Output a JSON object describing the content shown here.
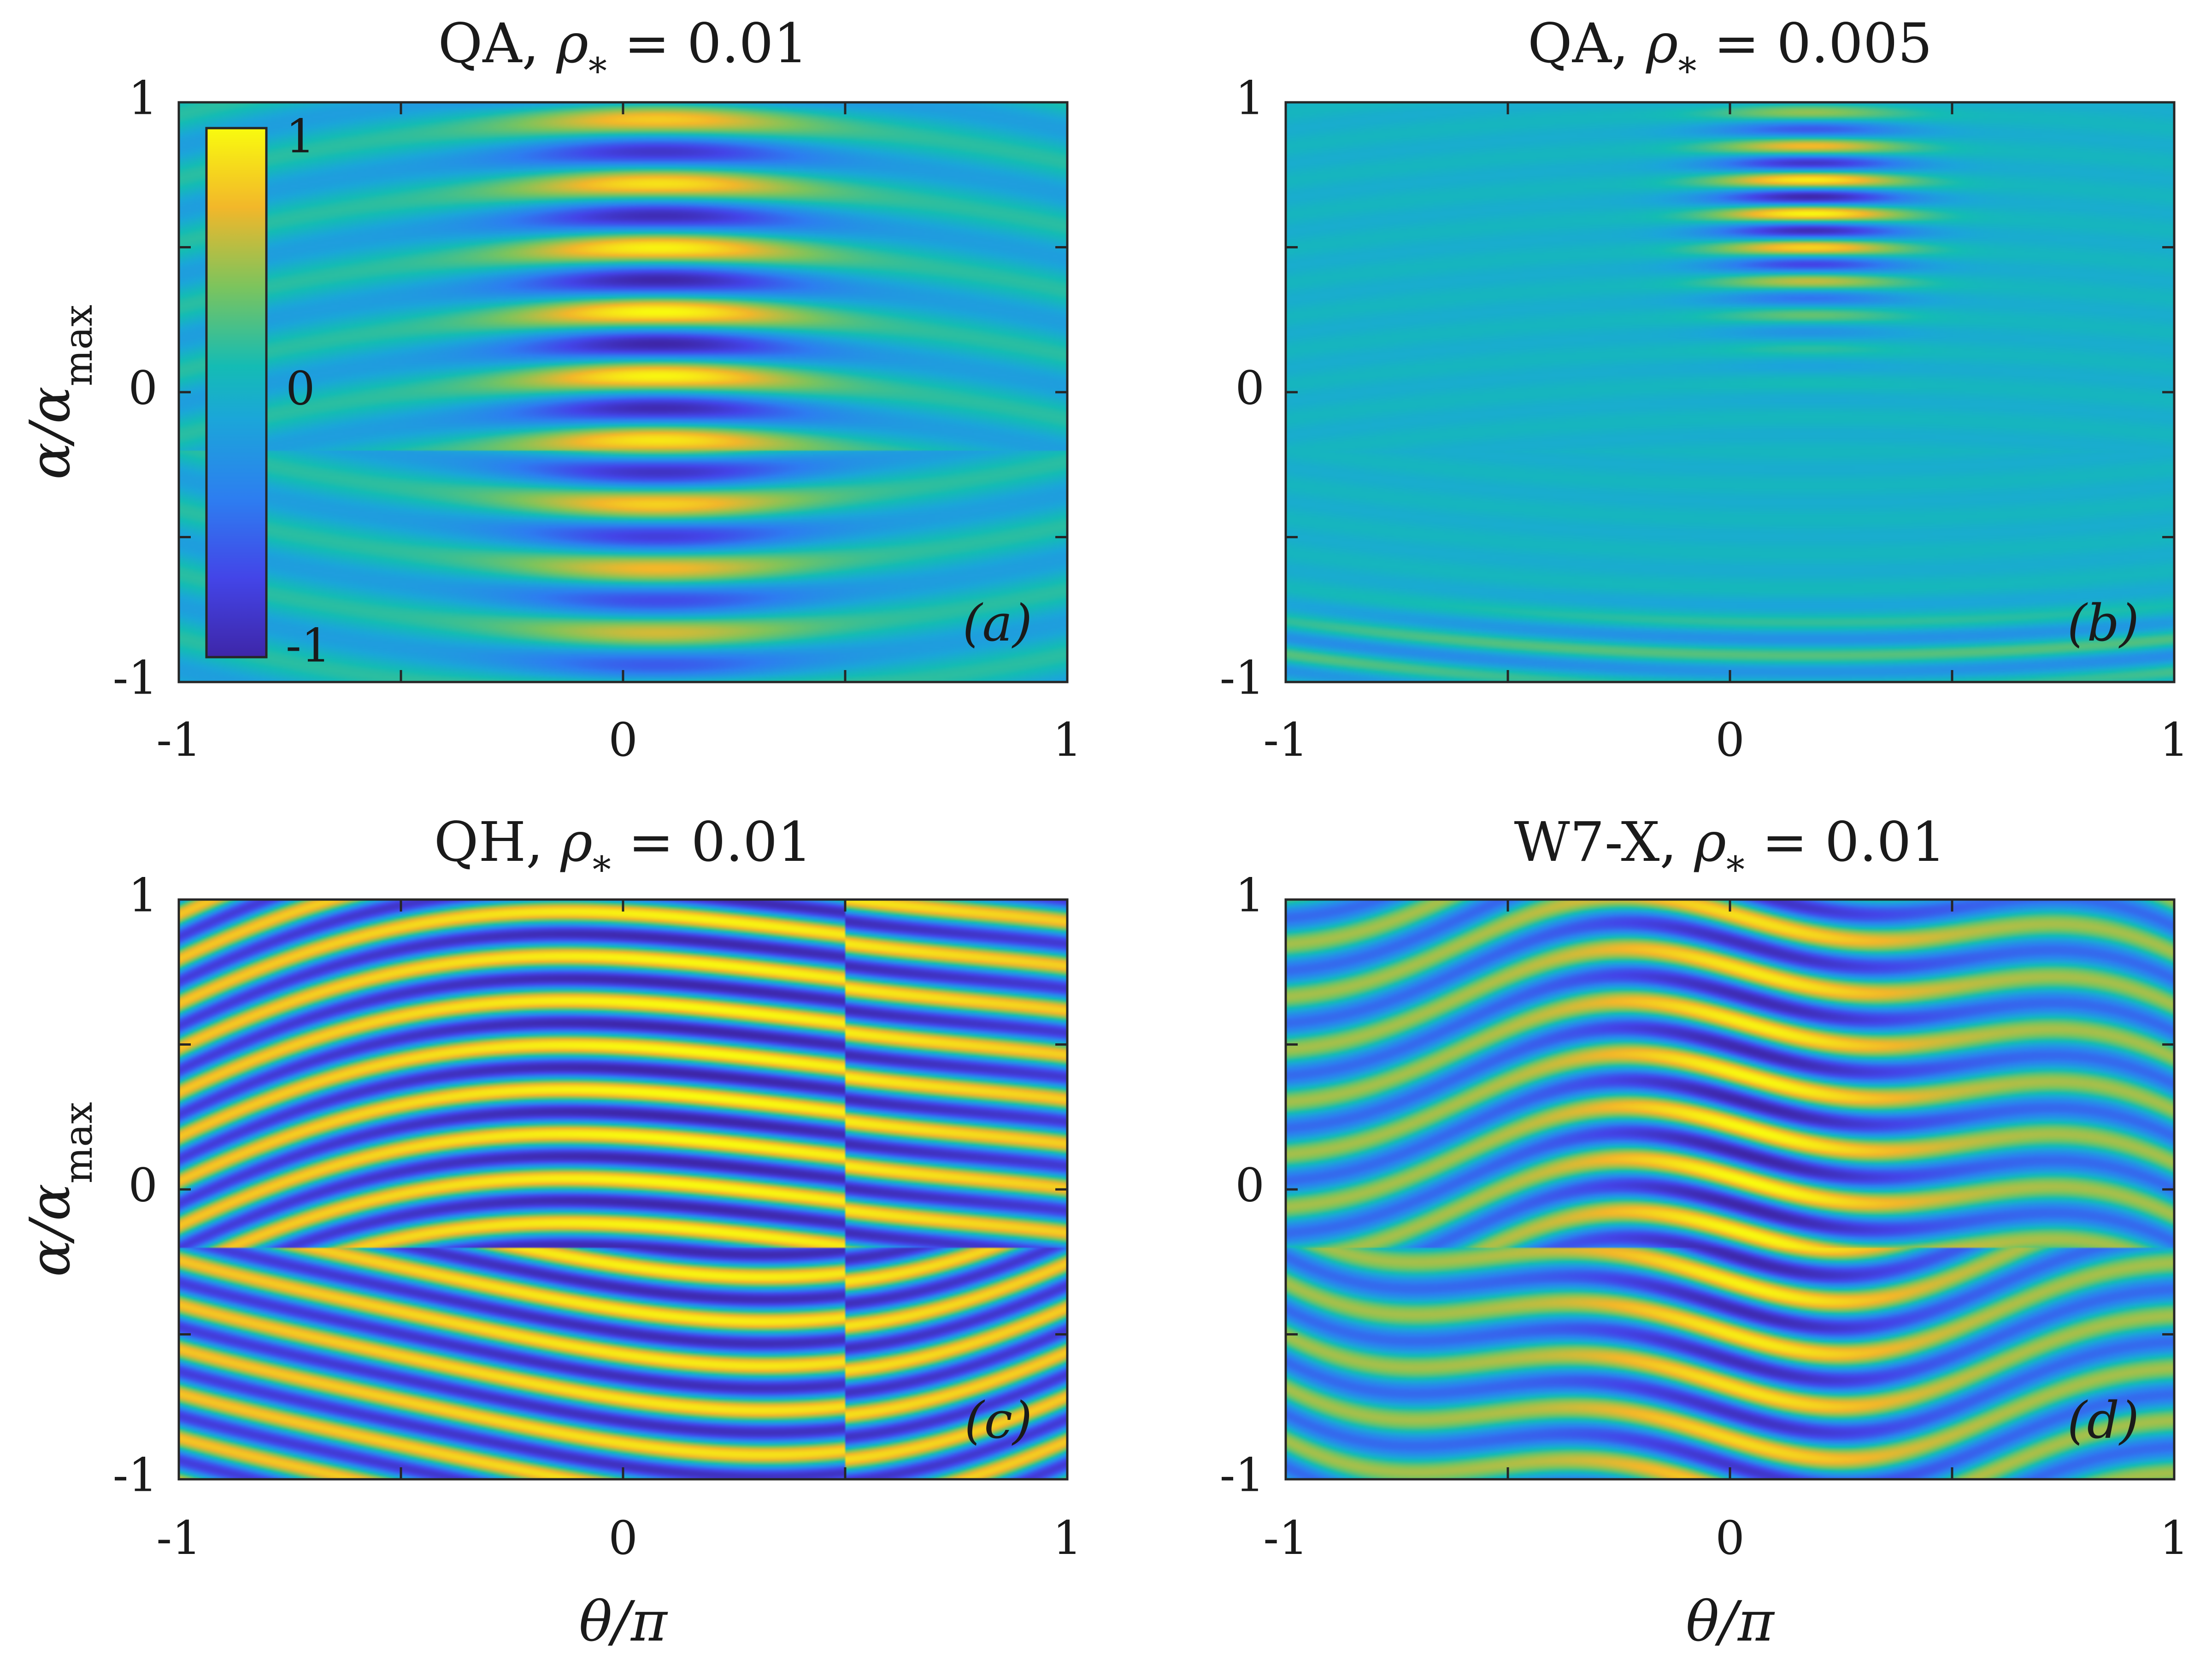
{
  "chart_data": [
    {
      "type": "heatmap",
      "panel": "(a)",
      "title": "QA, ρ* = 0.01",
      "title_parts": {
        "label": "QA, ",
        "symbol": "ρ",
        "subscript": "*",
        "equals": " = ",
        "value": "0.01"
      },
      "xlabel": "",
      "ylabel": "α/α_max",
      "ylabel_parts": {
        "main": "α/α",
        "subscript": "max"
      },
      "xlim": [
        -1,
        1
      ],
      "ylim": [
        -1,
        1
      ],
      "xticks": [
        -1,
        0,
        1
      ],
      "yticks": [
        -1,
        0,
        1
      ],
      "value_range": [
        -1,
        1
      ],
      "colormap": "parula",
      "colorbar": {
        "placement": "inside-upper-left",
        "ticks": [
          1,
          0,
          -1
        ],
        "tick_labels": [
          "1",
          "0",
          "-1"
        ]
      },
      "pattern": {
        "center_theta": 0.08,
        "width_theta": 0.22,
        "amplitude_core": 1.0,
        "amplitude_bg": 0.16,
        "fringes": 9.0,
        "bend": 0.5,
        "alpha_center": 0.25,
        "alpha_width": 0.7
      }
    },
    {
      "type": "heatmap",
      "panel": "(b)",
      "title": "QA, ρ* = 0.005",
      "title_parts": {
        "label": "QA, ",
        "symbol": "ρ",
        "subscript": "*",
        "equals": " = ",
        "value": "0.005"
      },
      "xlabel": "",
      "ylabel": "",
      "xlim": [
        -1,
        1
      ],
      "ylim": [
        -1,
        1
      ],
      "xticks": [
        -1,
        0,
        1
      ],
      "yticks": [
        -1,
        0,
        1
      ],
      "value_range": [
        -1,
        1
      ],
      "colormap": "parula",
      "pattern": {
        "center_theta": 0.18,
        "width_theta": 0.15,
        "amplitude_core": 0.95,
        "amplitude_bg": 0.08,
        "fringes": 17.0,
        "bend": 0.25,
        "alpha_center": 0.65,
        "alpha_width": 0.25
      }
    },
    {
      "type": "heatmap",
      "panel": "(c)",
      "title": "QH, ρ* = 0.01",
      "title_parts": {
        "label": "QH, ",
        "symbol": "ρ",
        "subscript": "*",
        "equals": " = ",
        "value": "0.01"
      },
      "xlabel": "θ/π",
      "ylabel": "α/α_max",
      "ylabel_parts": {
        "main": "α/α",
        "subscript": "max"
      },
      "xlim": [
        -1,
        1
      ],
      "ylim": [
        -1,
        1
      ],
      "xticks": [
        -1,
        0,
        1
      ],
      "yticks": [
        -1,
        0,
        1
      ],
      "value_range": [
        -1,
        1
      ],
      "colormap": "parula",
      "pattern": {
        "center_theta": 0.15,
        "width_theta": 0.5,
        "amplitude_core": 1.0,
        "amplitude_bg": 0.75,
        "fringes": 13.0,
        "bend": 0.7,
        "alpha_center": 0.35,
        "alpha_width": 0.9
      }
    },
    {
      "type": "heatmap",
      "panel": "(d)",
      "title": "W7-X, ρ* = 0.01",
      "title_parts": {
        "label": "W7-X, ",
        "symbol": "ρ",
        "subscript": "*",
        "equals": " = ",
        "value": "0.01"
      },
      "xlabel": "θ/π",
      "ylabel": "",
      "xlim": [
        -1,
        1
      ],
      "ylim": [
        -1,
        1
      ],
      "xticks": [
        -1,
        0,
        1
      ],
      "yticks": [
        -1,
        0,
        1
      ],
      "value_range": [
        -1,
        1
      ],
      "colormap": "parula",
      "pattern": {
        "center_theta": 0.05,
        "width_theta": 0.25,
        "amplitude_core": 1.0,
        "amplitude_bg": 0.5,
        "fringes": 11.0,
        "bend": 0.6,
        "alpha_center": 0.1,
        "alpha_width": 0.9
      }
    }
  ],
  "colors": {
    "low": "#3e26a8",
    "mid": "#14bcb4",
    "high": "#f9fb0e"
  }
}
